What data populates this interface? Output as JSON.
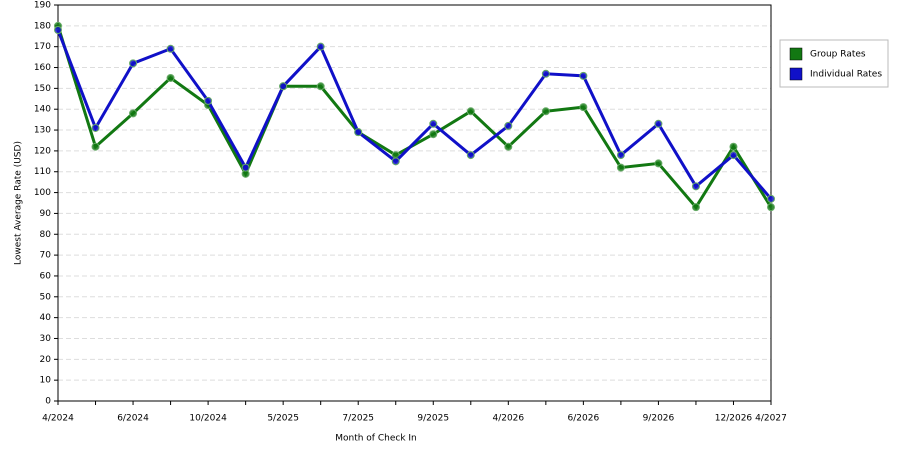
{
  "chart_data": {
    "type": "line",
    "x_label": "Month of Check In",
    "y_label": "Lowest Average Rate (USD)",
    "categories": [
      "4/2024",
      null,
      "6/2024",
      null,
      "10/2024",
      null,
      "5/2025",
      null,
      "7/2025",
      null,
      "9/2025",
      null,
      "4/2026",
      null,
      "6/2026",
      null,
      "9/2026",
      null,
      "12/2026",
      "4/2027"
    ],
    "series": [
      {
        "name": "Group Rates",
        "color": "#127812",
        "values": [
          180,
          122,
          138,
          155,
          142,
          109,
          151,
          151,
          129,
          118,
          128,
          139,
          122,
          139,
          141,
          112,
          114,
          93,
          122,
          93
        ]
      },
      {
        "name": "Individual Rates",
        "color": "#1010c8",
        "values": [
          178,
          131,
          162,
          169,
          144,
          112,
          151,
          170,
          129,
          115,
          133,
          118,
          132,
          157,
          156,
          118,
          133,
          103,
          118,
          97
        ]
      }
    ],
    "ylim": [
      0,
      190
    ],
    "yticks": [
      0,
      10,
      20,
      30,
      40,
      50,
      60,
      70,
      80,
      90,
      100,
      110,
      120,
      130,
      140,
      150,
      160,
      170,
      180,
      190
    ],
    "grid": true,
    "legend": "right"
  }
}
